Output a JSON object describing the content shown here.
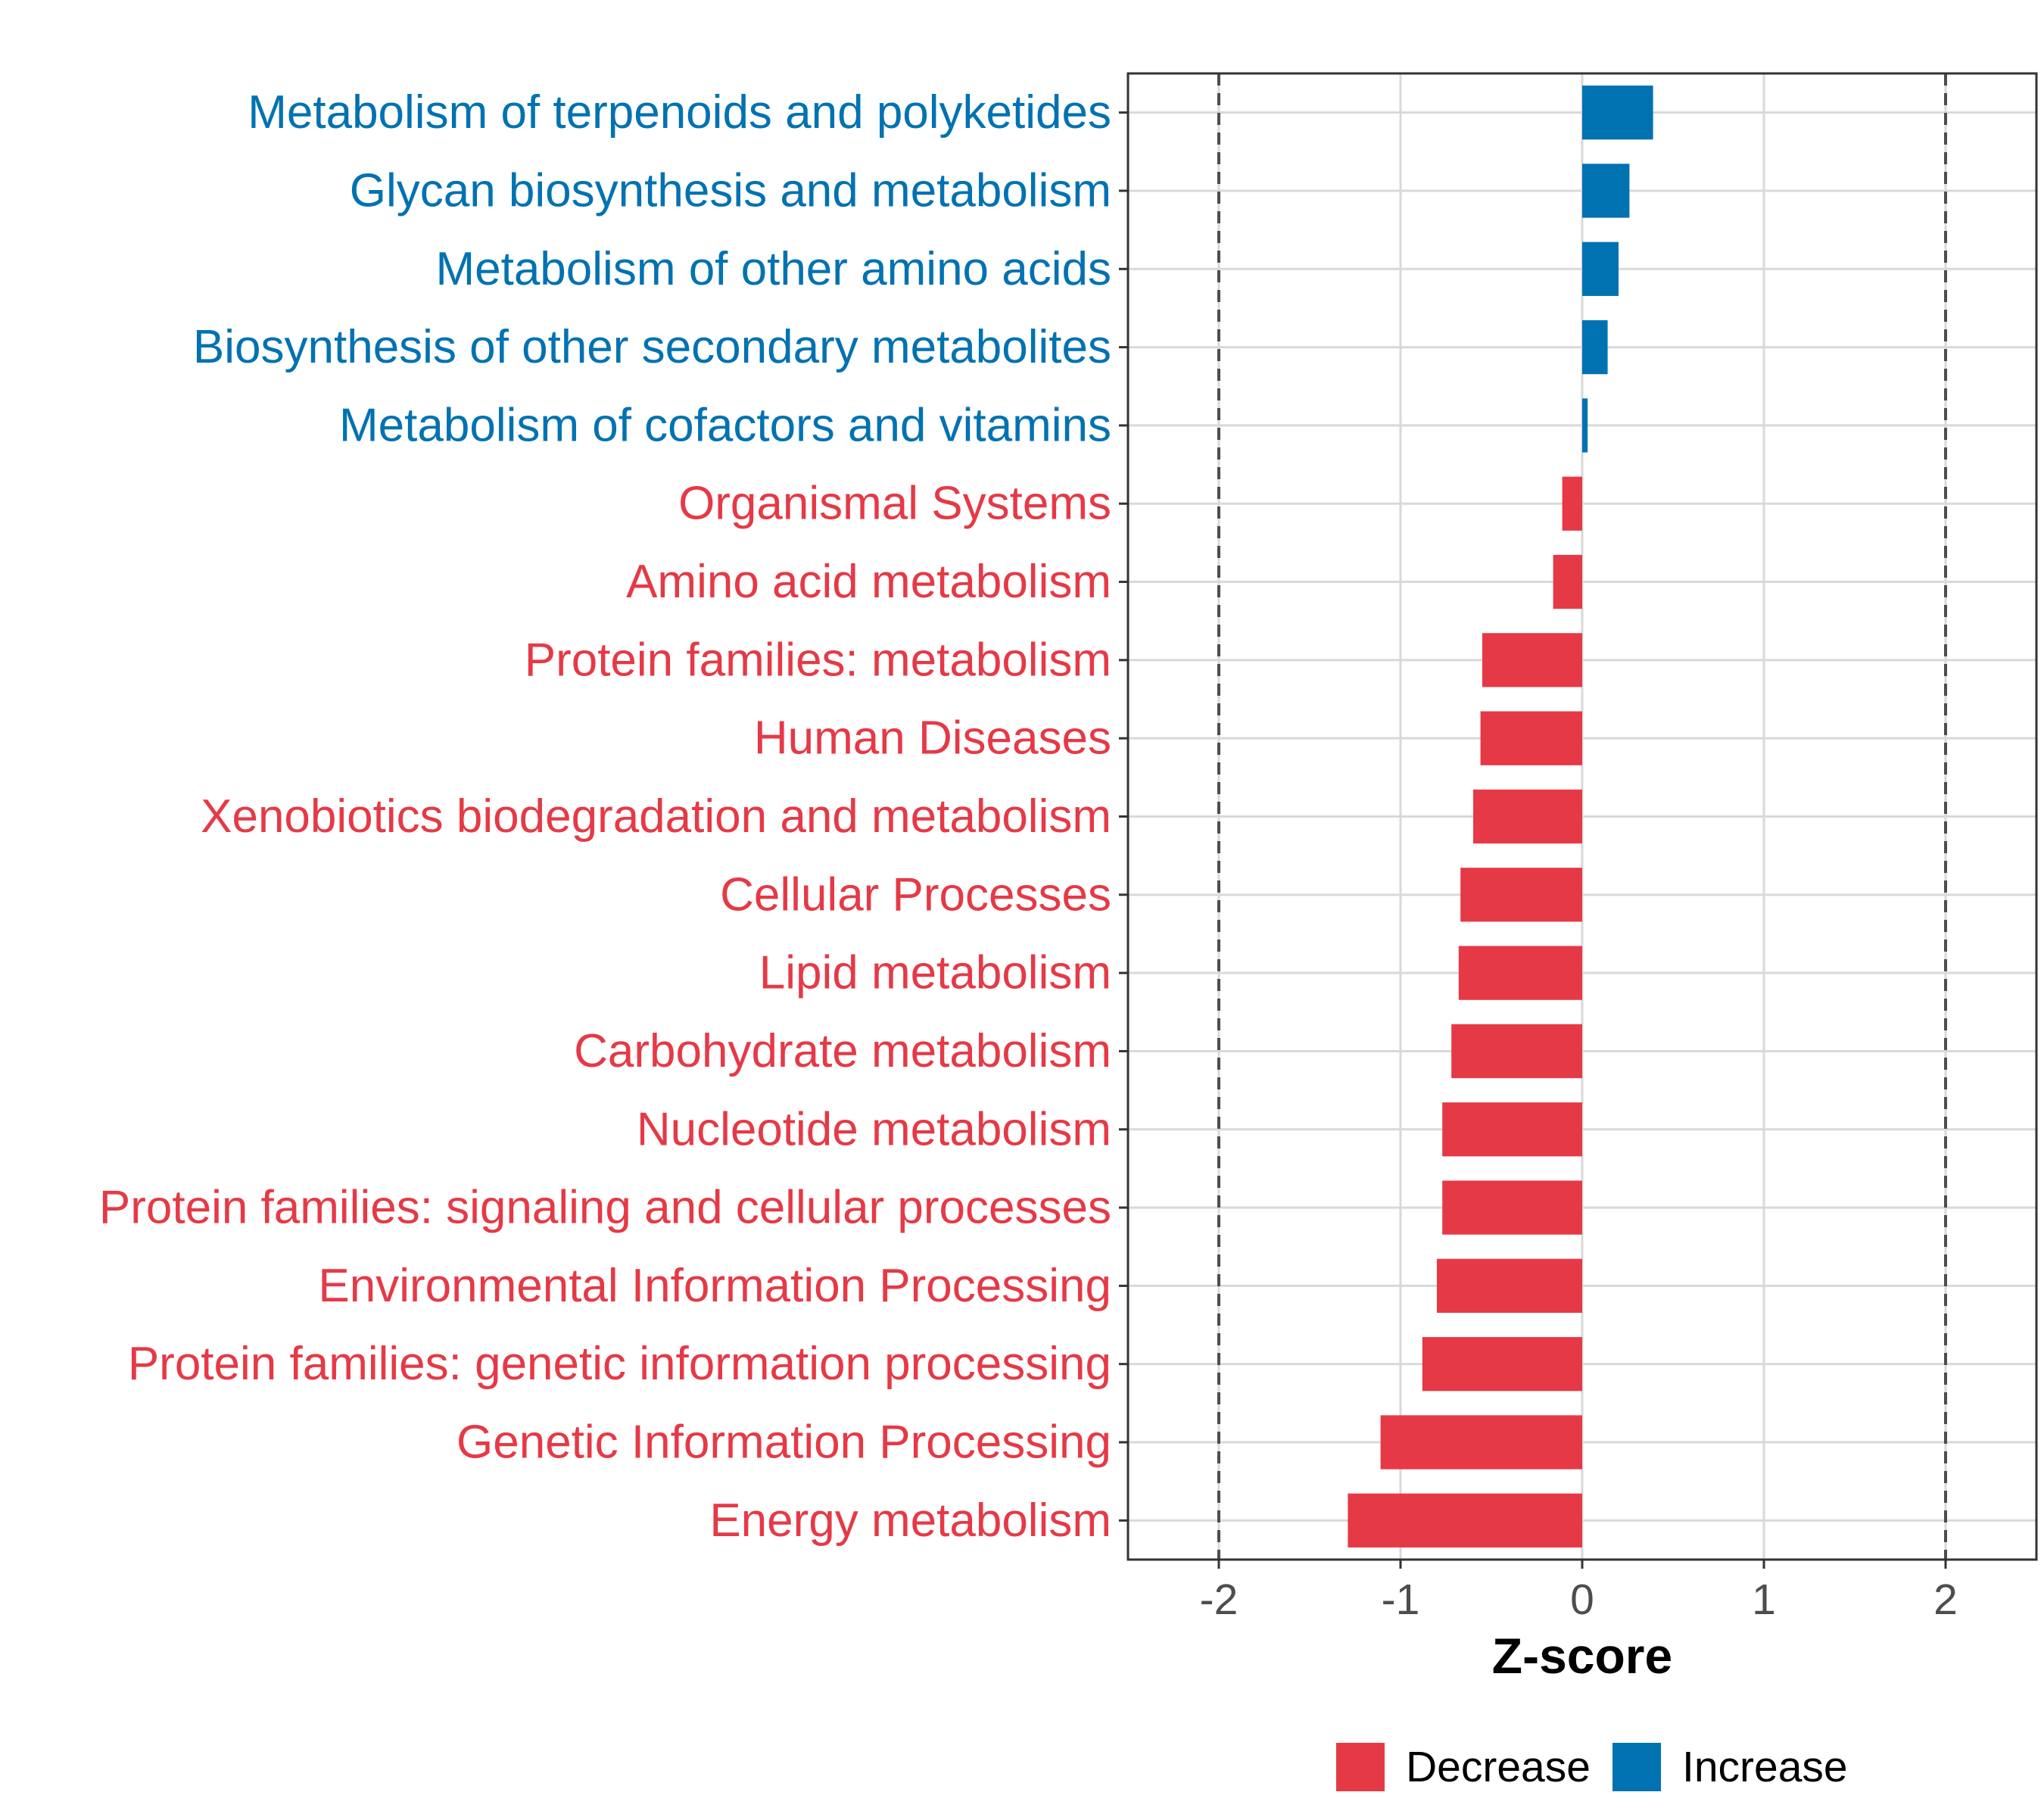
{
  "chart_data": {
    "type": "bar",
    "orientation": "horizontal",
    "xlabel": "Z-score",
    "xlim": [
      -2.5,
      2.5
    ],
    "xticks": [
      -2,
      -1,
      0,
      1,
      2
    ],
    "xtick_labels": [
      "-2",
      "-1",
      "0",
      "1",
      "2"
    ],
    "reference_lines": [
      -2,
      2
    ],
    "grid": true,
    "legend_position": "bottom",
    "legend": [
      {
        "label": "Decrease",
        "color": "#E63946"
      },
      {
        "label": "Increase",
        "color": "#0072B2"
      }
    ],
    "categories": [
      "Metabolism of terpenoids and polyketides",
      "Glycan biosynthesis and metabolism",
      "Metabolism of other amino acids",
      "Biosynthesis of other secondary metabolites",
      "Metabolism of cofactors and vitamins",
      "Organismal Systems",
      "Amino acid metabolism",
      "Protein families: metabolism",
      "Human Diseases",
      "Xenobiotics biodegradation and metabolism",
      "Cellular Processes",
      "Lipid metabolism",
      "Carbohydrate metabolism",
      "Nucleotide metabolism",
      "Protein families: signaling and cellular processes",
      "Environmental Information Processing",
      "Protein families: genetic information processing",
      "Genetic Information Processing",
      "Energy metabolism"
    ],
    "values": [
      0.39,
      0.26,
      0.2,
      0.14,
      0.03,
      -0.11,
      -0.16,
      -0.55,
      -0.56,
      -0.6,
      -0.67,
      -0.68,
      -0.72,
      -0.77,
      -0.77,
      -0.8,
      -0.88,
      -1.11,
      -1.29
    ]
  }
}
